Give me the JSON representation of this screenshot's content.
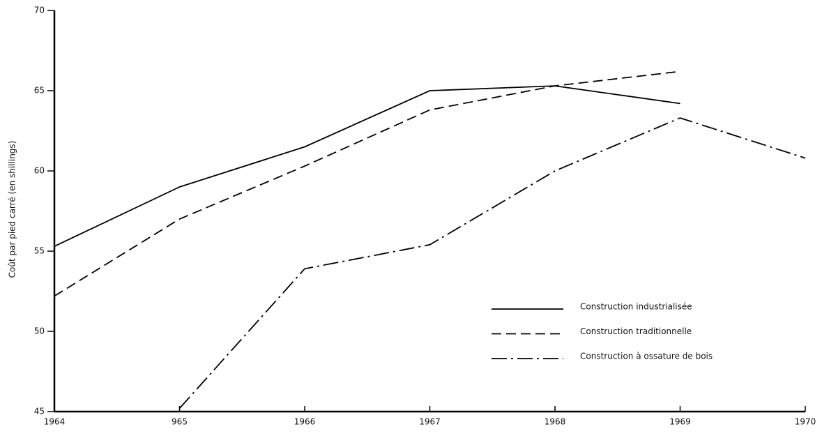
{
  "chart_data": {
    "type": "line",
    "ylabel": "Coût par pied carré (en shillings)",
    "x": [
      1964,
      1965,
      1966,
      1967,
      1968,
      1969,
      1970
    ],
    "series": [
      {
        "name": "Construction industrialisée",
        "color": "#000000",
        "dash": "solid",
        "values": [
          55.3,
          59.0,
          61.5,
          65.0,
          65.3,
          64.2,
          null
        ]
      },
      {
        "name": "Construction traditionnelle",
        "color": "#000000",
        "dash": "dashed",
        "values": [
          52.2,
          57.0,
          60.3,
          63.8,
          65.3,
          66.2,
          null
        ]
      },
      {
        "name": "Construction à ossature de bois",
        "color": "#000000",
        "dash": "dashdot",
        "values": [
          null,
          45.2,
          53.9,
          55.4,
          60.0,
          63.3,
          60.8
        ]
      }
    ],
    "xlim": [
      1964,
      1970
    ],
    "xticks": [
      1964,
      {
        "value": 1965,
        "label": "965"
      },
      1966,
      1967,
      1968,
      1969,
      1970
    ],
    "ylim": [
      45,
      70
    ],
    "yticks": [
      45,
      50,
      55,
      60,
      65,
      70
    ],
    "grid": false,
    "legend": "right"
  }
}
